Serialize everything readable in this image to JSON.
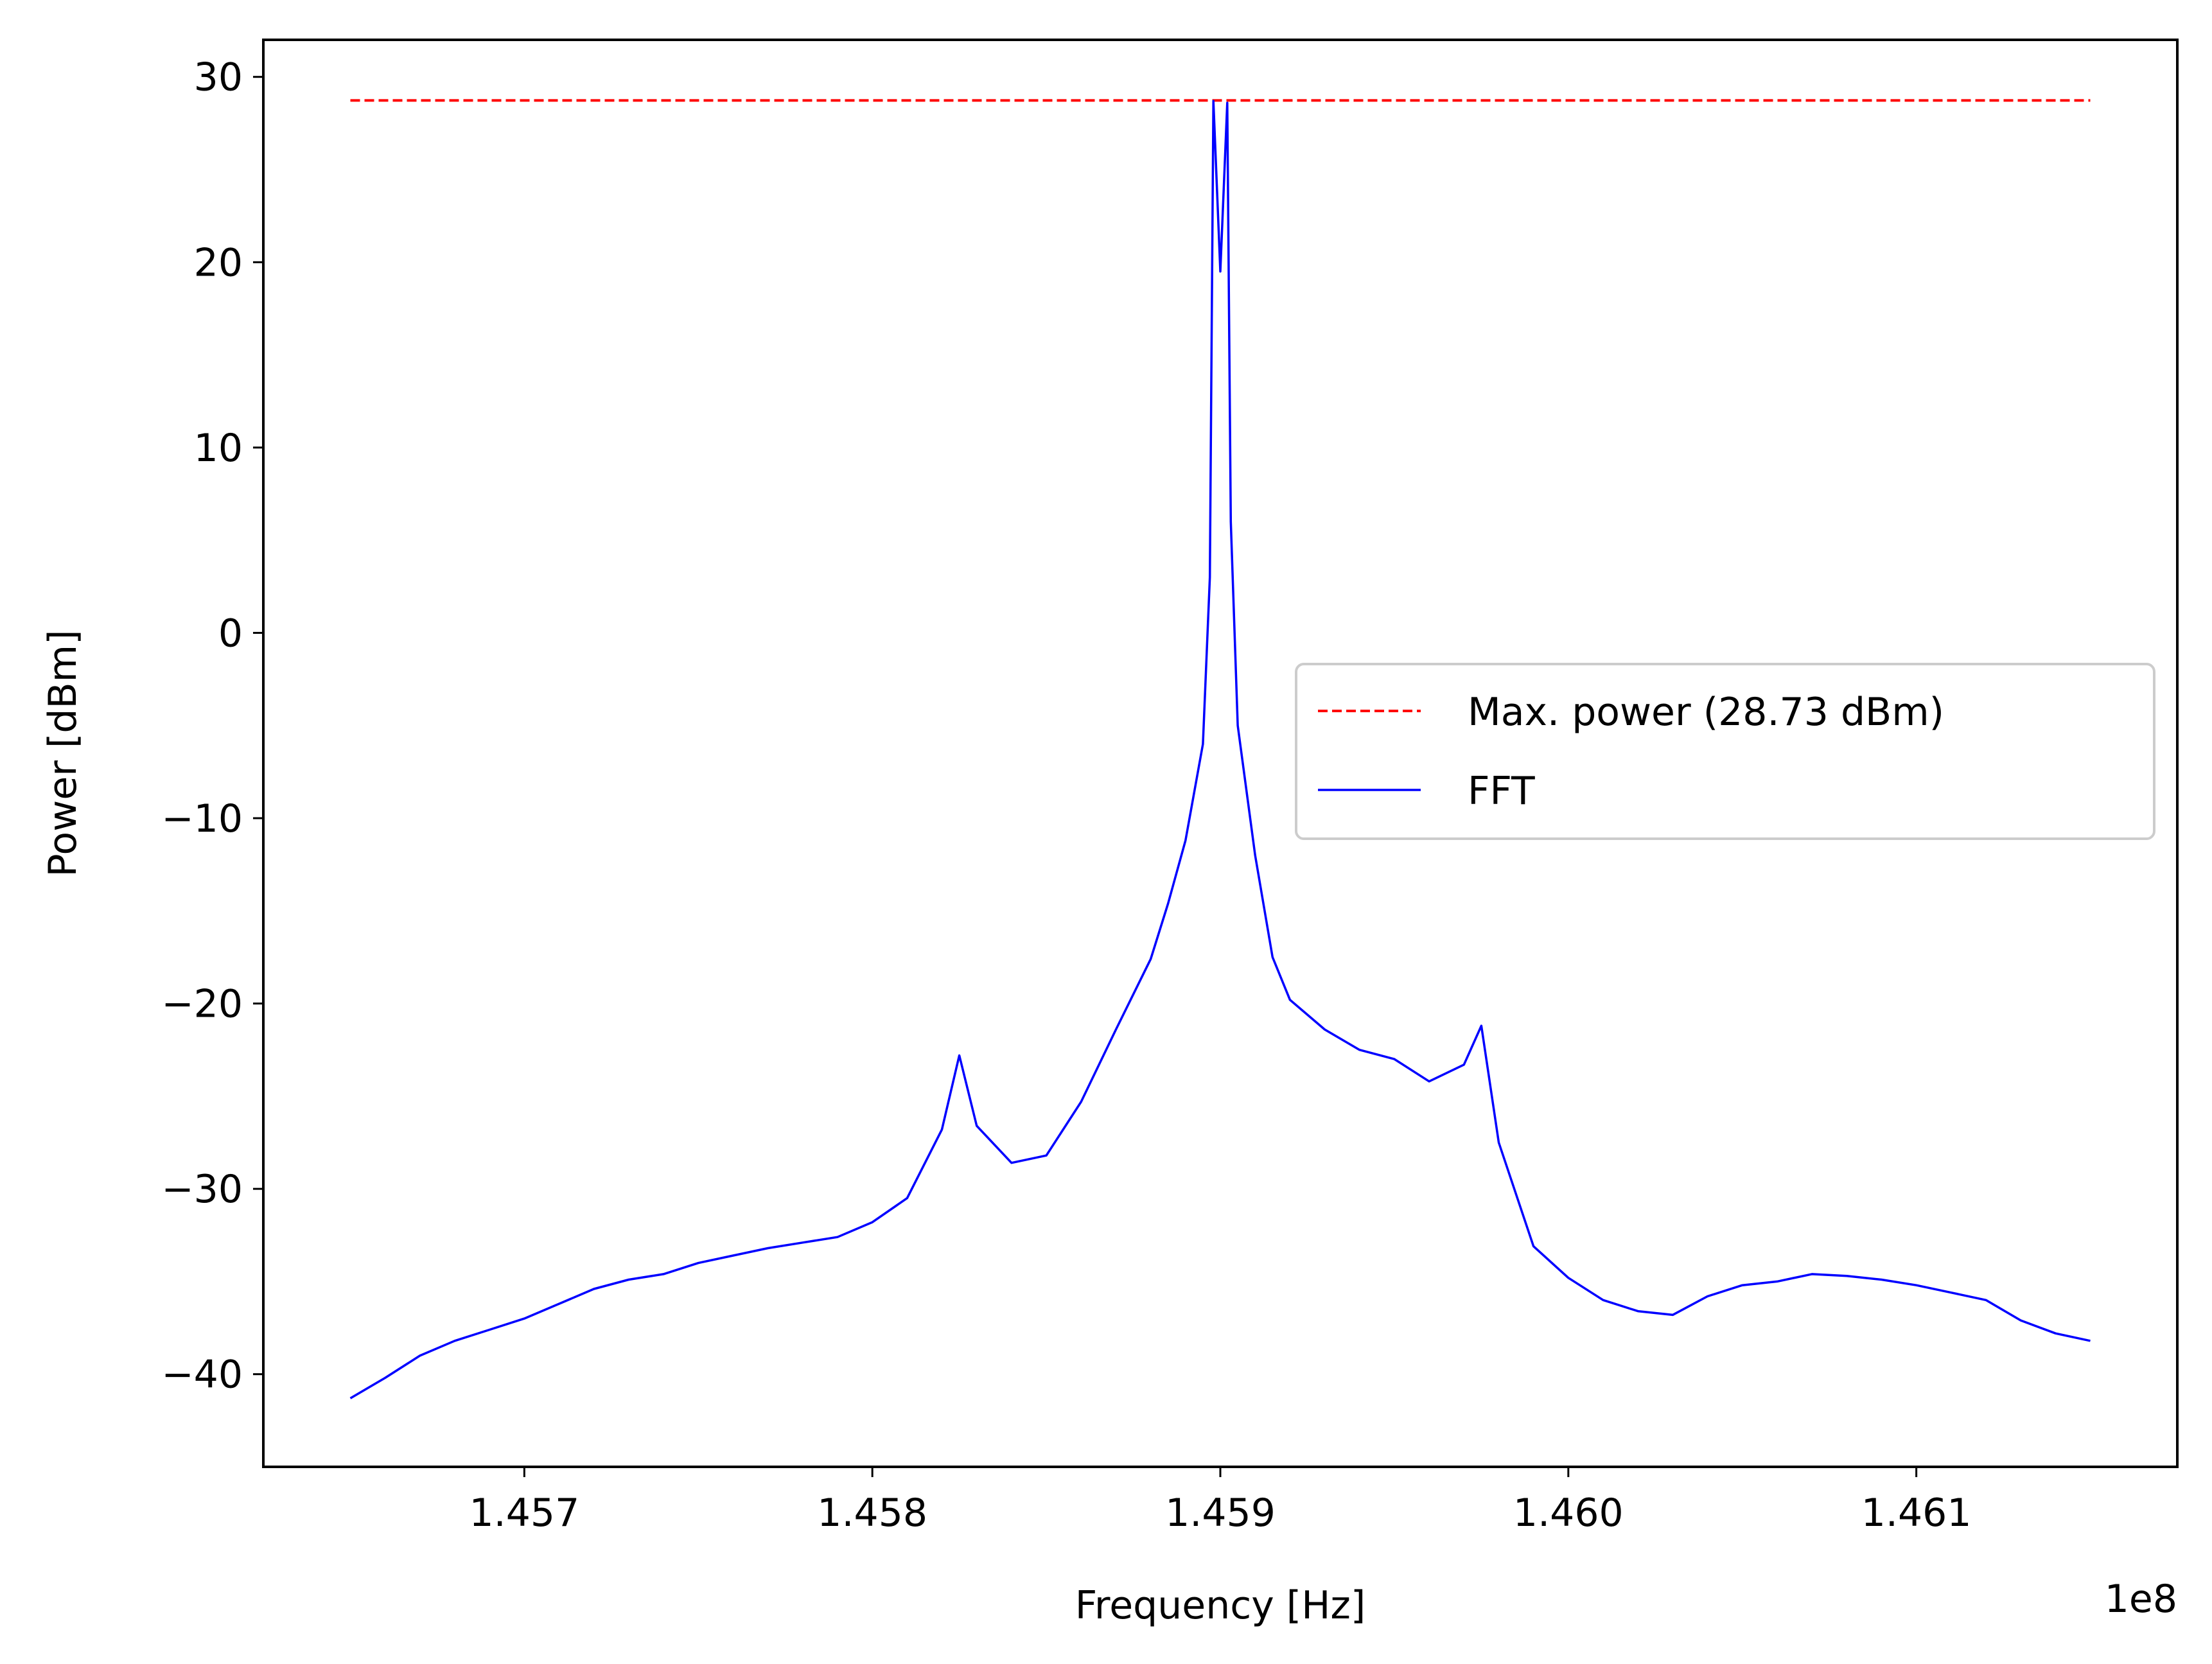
{
  "chart_data": {
    "type": "line",
    "title": "",
    "xlabel": "Frequency [Hz]",
    "ylabel": "Power [dBm]",
    "x_offset_text": "1e8",
    "xlim": [
      1.45625,
      1.46175
    ],
    "ylim": [
      -45,
      32
    ],
    "xticks": [
      1.457,
      1.458,
      1.459,
      1.46,
      1.461
    ],
    "xtick_labels": [
      "1.457",
      "1.458",
      "1.459",
      "1.460",
      "1.461"
    ],
    "yticks": [
      -40,
      -30,
      -20,
      -10,
      0,
      10,
      20,
      30
    ],
    "ytick_labels": [
      "−40",
      "−30",
      "−20",
      "−10",
      "0",
      "10",
      "20",
      "30"
    ],
    "grid": false,
    "legend_location": "center-right",
    "series": [
      {
        "name": "Max. power (28.73 dBm)",
        "style": "dashed",
        "color": "#ff0000",
        "x": [
          1.4565,
          1.4615
        ],
        "y": [
          28.73,
          28.73
        ]
      },
      {
        "name": "FFT",
        "style": "solid",
        "color": "#0000ff",
        "x": [
          1.4565,
          1.4566,
          1.4567,
          1.4568,
          1.4569,
          1.457,
          1.4571,
          1.4572,
          1.4573,
          1.4574,
          1.4575,
          1.4576,
          1.4577,
          1.4578,
          1.4579,
          1.458,
          1.4581,
          1.4582,
          1.45825,
          1.4583,
          1.4584,
          1.4585,
          1.4586,
          1.4587,
          1.4588,
          1.45885,
          1.4589,
          1.45895,
          1.45897,
          1.45898,
          1.459,
          1.45902,
          1.45903,
          1.45905,
          1.4591,
          1.45915,
          1.4592,
          1.4593,
          1.4594,
          1.4595,
          1.4596,
          1.4597,
          1.45975,
          1.4598,
          1.4599,
          1.46,
          1.4601,
          1.4602,
          1.4603,
          1.4604,
          1.4605,
          1.4606,
          1.4607,
          1.4608,
          1.4609,
          1.461,
          1.4611,
          1.4612,
          1.4613,
          1.4614,
          1.4615
        ],
        "y": [
          -41.3,
          -40.2,
          -39.0,
          -38.2,
          -37.6,
          -37.0,
          -36.2,
          -35.4,
          -34.9,
          -34.6,
          -34.0,
          -33.6,
          -33.2,
          -32.9,
          -32.6,
          -31.8,
          -30.5,
          -26.8,
          -22.8,
          -26.6,
          -28.6,
          -28.2,
          -25.3,
          -21.4,
          -17.6,
          -14.6,
          -11.2,
          -6.0,
          3.0,
          28.7,
          19.5,
          28.6,
          6.0,
          -5.0,
          -12.0,
          -17.5,
          -19.8,
          -21.4,
          -22.5,
          -23.0,
          -24.2,
          -23.3,
          -21.2,
          -27.5,
          -33.1,
          -34.8,
          -36.0,
          -36.6,
          -36.8,
          -35.8,
          -35.2,
          -35.0,
          -34.6,
          -34.7,
          -34.9,
          -35.2,
          -35.6,
          -36.0,
          -37.1,
          -37.8,
          -38.2
        ]
      }
    ]
  }
}
